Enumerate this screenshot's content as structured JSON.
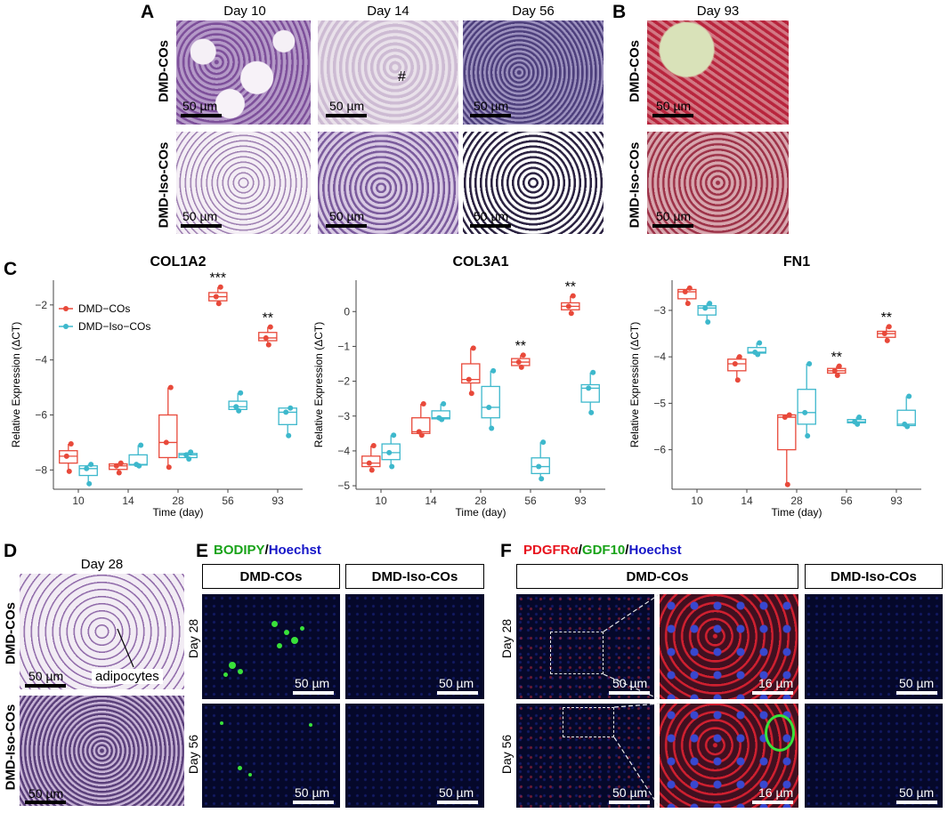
{
  "panels": {
    "A": "A",
    "B": "B",
    "C": "C",
    "D": "D",
    "E": "E",
    "F": "F"
  },
  "panelA": {
    "col_labels": [
      "Day 10",
      "Day 14",
      "Day 56"
    ],
    "row_labels": [
      "DMD-COs",
      "DMD-Iso-COs"
    ],
    "scale": "50 µm",
    "hash_mark": "#"
  },
  "panelB": {
    "col_label": "Day 93",
    "row_labels": [
      "DMD-COs",
      "DMD-Iso-COs"
    ],
    "scale": "50 µm"
  },
  "panelD": {
    "col_label": "Day 28",
    "row_labels": [
      "DMD-COs",
      "DMD-Iso-COs"
    ],
    "scale": "50 µm",
    "annotation": "adipocytes"
  },
  "panelE": {
    "title_part1": "BODIPY",
    "title_sep": "/",
    "title_part2": "Hoechst",
    "col_labels": [
      "DMD-COs",
      "DMD-Iso-COs"
    ],
    "row_labels": [
      "Day 28",
      "Day 56"
    ],
    "scale": "50 µm",
    "colors": {
      "bodipy": "#19a319",
      "hoechst": "#1616c8"
    }
  },
  "panelF": {
    "title_part1": "PDGFRα",
    "title_sep1": "/",
    "title_part2": "GDF10",
    "title_sep2": "/",
    "title_part3": "Hoechst",
    "col_labels": [
      "DMD-COs",
      "DMD-Iso-COs"
    ],
    "row_labels": [
      "Day 28",
      "Day 56"
    ],
    "scale": "50 µm",
    "scale_zoom": "16 µm",
    "colors": {
      "pdgfra": "#e8141e",
      "gdf10": "#19a319",
      "hoechst": "#1616c8"
    }
  },
  "chart_data": [
    {
      "type": "box",
      "title": "COL1A2",
      "xlabel": "Time (day)",
      "ylabel": "Relative Expression (ΔCT)",
      "categories": [
        "10",
        "14",
        "28",
        "56",
        "93"
      ],
      "ylim": [
        -8.7,
        -1.1
      ],
      "yticks": [
        -8,
        -6,
        -4,
        -2
      ],
      "legend": [
        "DMD−COs",
        "DMD−Iso−COs"
      ],
      "legend_position": "top-left",
      "significance": {
        "56": "***",
        "93": "**"
      },
      "series": [
        {
          "name": "DMD−COs",
          "color": "#e8493a",
          "boxes": [
            [
              -8.05,
              -7.75,
              -7.5,
              -7.3,
              -7.05
            ],
            [
              -8.1,
              -7.98,
              -7.85,
              -7.78,
              -7.75
            ],
            [
              -7.9,
              -7.55,
              -7.0,
              -6.0,
              -5.0
            ],
            [
              -1.95,
              -1.85,
              -1.7,
              -1.55,
              -1.35
            ],
            [
              -3.45,
              -3.3,
              -3.2,
              -3.0,
              -2.8
            ]
          ],
          "points": [
            [
              -7.05,
              -7.5,
              -8.05
            ],
            [
              -7.75,
              -7.85,
              -8.1
            ],
            [
              -5.0,
              -7.0,
              -7.9
            ],
            [
              -1.35,
              -1.7,
              -1.95
            ],
            [
              -2.8,
              -3.2,
              -3.45
            ]
          ]
        },
        {
          "name": "DMD−Iso−COs",
          "color": "#3db8cc",
          "boxes": [
            [
              -8.5,
              -8.2,
              -7.95,
              -7.85,
              -7.8
            ],
            [
              -7.85,
              -7.82,
              -7.8,
              -7.45,
              -7.1
            ],
            [
              -7.6,
              -7.55,
              -7.45,
              -7.4,
              -7.35
            ],
            [
              -5.85,
              -5.8,
              -5.7,
              -5.5,
              -5.2
            ],
            [
              -6.75,
              -6.35,
              -5.9,
              -5.75,
              -5.75
            ]
          ],
          "points": [
            [
              -7.8,
              -7.95,
              -8.5
            ],
            [
              -7.1,
              -7.8,
              -7.85
            ],
            [
              -7.35,
              -7.45,
              -7.6
            ],
            [
              -5.2,
              -5.7,
              -5.85
            ],
            [
              -5.75,
              -5.9,
              -6.75
            ]
          ]
        }
      ]
    },
    {
      "type": "box",
      "title": "COL3A1",
      "xlabel": "Time (day)",
      "ylabel": "Relative Expression (ΔCT)",
      "categories": [
        "10",
        "14",
        "28",
        "56",
        "93"
      ],
      "ylim": [
        -5.1,
        0.9
      ],
      "yticks": [
        -5,
        -4,
        -3,
        -2,
        -1,
        0
      ],
      "significance": {
        "56": "**",
        "93": "**"
      },
      "series": [
        {
          "name": "DMD−COs",
          "color": "#e8493a",
          "boxes": [
            [
              -4.55,
              -4.45,
              -4.35,
              -4.15,
              -3.85
            ],
            [
              -3.55,
              -3.5,
              -3.45,
              -3.05,
              -2.65
            ],
            [
              -2.35,
              -2.05,
              -1.95,
              -1.5,
              -1.05
            ],
            [
              -1.6,
              -1.55,
              -1.45,
              -1.35,
              -1.25
            ],
            [
              -0.05,
              0.05,
              0.15,
              0.25,
              0.45
            ]
          ],
          "points": [
            [
              -3.85,
              -4.35,
              -4.55
            ],
            [
              -2.65,
              -3.45,
              -3.55
            ],
            [
              -1.05,
              -1.95,
              -2.35
            ],
            [
              -1.25,
              -1.45,
              -1.6
            ],
            [
              0.45,
              0.15,
              -0.05
            ]
          ]
        },
        {
          "name": "DMD−Iso−COs",
          "color": "#3db8cc",
          "boxes": [
            [
              -4.45,
              -4.25,
              -4.05,
              -3.8,
              -3.55
            ],
            [
              -3.1,
              -3.08,
              -3.05,
              -2.85,
              -2.65
            ],
            [
              -3.35,
              -3.05,
              -2.75,
              -2.15,
              -1.7
            ],
            [
              -4.8,
              -4.65,
              -4.45,
              -4.2,
              -3.75
            ],
            [
              -2.9,
              -2.6,
              -2.2,
              -2.1,
              -1.75
            ]
          ],
          "points": [
            [
              -3.55,
              -4.05,
              -4.45
            ],
            [
              -2.65,
              -3.05,
              -3.1
            ],
            [
              -1.7,
              -2.75,
              -3.35
            ],
            [
              -3.75,
              -4.45,
              -4.8
            ],
            [
              -1.75,
              -2.2,
              -2.9
            ]
          ]
        }
      ]
    },
    {
      "type": "box",
      "title": "FN1",
      "xlabel": "Time (day)",
      "ylabel": "Relative Expression (ΔCT)",
      "categories": [
        "10",
        "14",
        "28",
        "56",
        "93"
      ],
      "ylim": [
        -6.85,
        -2.35
      ],
      "yticks": [
        -6,
        -5,
        -4,
        -3
      ],
      "significance": {
        "56": "**",
        "93": "**"
      },
      "series": [
        {
          "name": "DMD−COs",
          "color": "#e8493a",
          "boxes": [
            [
              -2.85,
              -2.75,
              -2.6,
              -2.55,
              -2.52
            ],
            [
              -4.5,
              -4.3,
              -4.15,
              -4.05,
              -4.0
            ],
            [
              -6.75,
              -6.0,
              -5.3,
              -5.25,
              -5.25
            ],
            [
              -4.4,
              -4.35,
              -4.3,
              -4.25,
              -4.2
            ],
            [
              -3.65,
              -3.58,
              -3.5,
              -3.45,
              -3.35
            ]
          ],
          "points": [
            [
              -2.52,
              -2.6,
              -2.85
            ],
            [
              -4.0,
              -4.15,
              -4.5
            ],
            [
              -5.25,
              -5.3,
              -6.75
            ],
            [
              -4.2,
              -4.3,
              -4.4
            ],
            [
              -3.35,
              -3.5,
              -3.65
            ]
          ]
        },
        {
          "name": "DMD−Iso−COs",
          "color": "#3db8cc",
          "boxes": [
            [
              -3.25,
              -3.1,
              -2.95,
              -2.9,
              -2.85
            ],
            [
              -3.95,
              -3.92,
              -3.9,
              -3.8,
              -3.7
            ],
            [
              -5.7,
              -5.45,
              -5.2,
              -4.7,
              -4.15
            ],
            [
              -5.45,
              -5.42,
              -5.4,
              -5.35,
              -5.3
            ],
            [
              -5.5,
              -5.48,
              -5.45,
              -5.15,
              -4.85
            ]
          ],
          "points": [
            [
              -2.85,
              -2.95,
              -3.25
            ],
            [
              -3.7,
              -3.9,
              -3.95
            ],
            [
              -4.15,
              -5.2,
              -5.7
            ],
            [
              -5.3,
              -5.4,
              -5.45
            ],
            [
              -4.85,
              -5.45,
              -5.5
            ]
          ]
        }
      ]
    }
  ]
}
